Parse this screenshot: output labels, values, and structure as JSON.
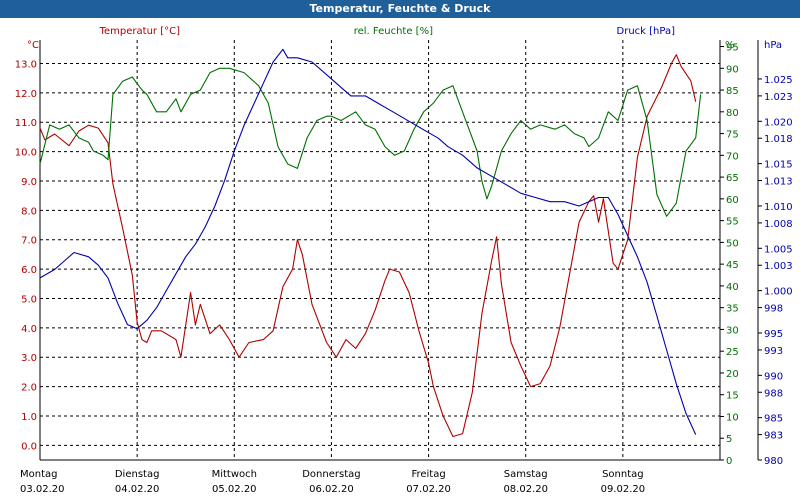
{
  "window": {
    "title": "Temperatur, Feuchte & Druck"
  },
  "chart_data": {
    "type": "line",
    "title": "Temperatur, Feuchte & Druck",
    "colors": {
      "temperature": "#b00000",
      "humidity": "#007000",
      "pressure": "#0000b0",
      "grid": "#000000"
    },
    "grid": true,
    "x_range": [
      0,
      7
    ],
    "x_ticks": [
      {
        "day": "Montag",
        "date": "03.02.20"
      },
      {
        "day": "Dienstag",
        "date": "04.02.20"
      },
      {
        "day": "Mittwoch",
        "date": "05.02.20"
      },
      {
        "day": "Donnerstag",
        "date": "06.02.20"
      },
      {
        "day": "Freitag",
        "date": "07.02.20"
      },
      {
        "day": "Samstag",
        "date": "08.02.20"
      },
      {
        "day": "Sonntag",
        "date": "09.02.20"
      }
    ],
    "axes": {
      "temperature": {
        "unit": "°C",
        "ylim": [
          -0.5,
          13.8
        ],
        "ticks": [
          "0.0",
          "1.0",
          "2.0",
          "3.0",
          "4.0",
          "5.0",
          "6.0",
          "7.0",
          "8.0",
          "9.0",
          "10.0",
          "11.0",
          "12.0",
          "13.0"
        ]
      },
      "humidity": {
        "unit": "%",
        "ylim": [
          0,
          96.5
        ],
        "ticks": [
          "0",
          "5",
          "10",
          "15",
          "20",
          "25",
          "30",
          "35",
          "40",
          "45",
          "50",
          "55",
          "60",
          "65",
          "70",
          "75",
          "80",
          "85",
          "90",
          "95"
        ]
      },
      "pressure": {
        "unit": "hPa",
        "ylim": [
          980,
          1029.6
        ],
        "ticks": [
          "980",
          "983",
          "985",
          "988",
          "990",
          "993",
          "995",
          "998",
          "1.000",
          "1.003",
          "1.005",
          "1.008",
          "1.010",
          "1.013",
          "1.015",
          "1.018",
          "1.020",
          "1.023",
          "1.025"
        ]
      }
    },
    "series": [
      {
        "name": "Temperatur [°C]",
        "axis": "temperature",
        "points": [
          [
            0,
            10.8
          ],
          [
            0.05,
            10.4
          ],
          [
            0.15,
            10.6
          ],
          [
            0.3,
            10.2
          ],
          [
            0.4,
            10.7
          ],
          [
            0.5,
            10.9
          ],
          [
            0.6,
            10.8
          ],
          [
            0.7,
            10.3
          ],
          [
            0.75,
            8.9
          ],
          [
            0.85,
            7.4
          ],
          [
            0.95,
            5.8
          ],
          [
            1.0,
            4.2
          ],
          [
            1.05,
            3.6
          ],
          [
            1.1,
            3.5
          ],
          [
            1.15,
            3.9
          ],
          [
            1.25,
            3.9
          ],
          [
            1.4,
            3.6
          ],
          [
            1.45,
            3.0
          ],
          [
            1.55,
            5.2
          ],
          [
            1.6,
            4.1
          ],
          [
            1.65,
            4.8
          ],
          [
            1.75,
            3.8
          ],
          [
            1.85,
            4.1
          ],
          [
            1.95,
            3.6
          ],
          [
            2.05,
            3.0
          ],
          [
            2.15,
            3.5
          ],
          [
            2.3,
            3.6
          ],
          [
            2.4,
            3.9
          ],
          [
            2.5,
            5.4
          ],
          [
            2.6,
            6.0
          ],
          [
            2.65,
            7.0
          ],
          [
            2.7,
            6.5
          ],
          [
            2.8,
            4.8
          ],
          [
            2.95,
            3.5
          ],
          [
            3.05,
            3.0
          ],
          [
            3.15,
            3.6
          ],
          [
            3.25,
            3.3
          ],
          [
            3.35,
            3.8
          ],
          [
            3.45,
            4.6
          ],
          [
            3.55,
            5.6
          ],
          [
            3.6,
            6.0
          ],
          [
            3.7,
            5.9
          ],
          [
            3.8,
            5.2
          ],
          [
            3.9,
            3.9
          ],
          [
            4.0,
            2.8
          ],
          [
            4.05,
            2.0
          ],
          [
            4.15,
            1.0
          ],
          [
            4.25,
            0.3
          ],
          [
            4.35,
            0.4
          ],
          [
            4.45,
            1.8
          ],
          [
            4.55,
            4.5
          ],
          [
            4.65,
            6.3
          ],
          [
            4.7,
            7.1
          ],
          [
            4.75,
            5.5
          ],
          [
            4.85,
            3.5
          ],
          [
            4.95,
            2.7
          ],
          [
            5.05,
            2.0
          ],
          [
            5.15,
            2.1
          ],
          [
            5.25,
            2.7
          ],
          [
            5.35,
            4.0
          ],
          [
            5.45,
            5.8
          ],
          [
            5.55,
            7.6
          ],
          [
            5.65,
            8.3
          ],
          [
            5.7,
            8.5
          ],
          [
            5.75,
            7.6
          ],
          [
            5.8,
            8.4
          ],
          [
            5.9,
            6.2
          ],
          [
            5.95,
            6.0
          ],
          [
            6.05,
            7.0
          ],
          [
            6.15,
            9.8
          ],
          [
            6.25,
            11.2
          ],
          [
            6.4,
            12.2
          ],
          [
            6.5,
            13.0
          ],
          [
            6.55,
            13.3
          ],
          [
            6.6,
            12.9
          ],
          [
            6.7,
            12.4
          ],
          [
            6.75,
            11.7
          ]
        ]
      },
      {
        "name": "rel. Feuchte [%]",
        "axis": "humidity",
        "points": [
          [
            0,
            68
          ],
          [
            0.1,
            77
          ],
          [
            0.2,
            76
          ],
          [
            0.3,
            77
          ],
          [
            0.4,
            74
          ],
          [
            0.5,
            73
          ],
          [
            0.55,
            71
          ],
          [
            0.65,
            70
          ],
          [
            0.7,
            69
          ],
          [
            0.75,
            84
          ],
          [
            0.85,
            87
          ],
          [
            0.95,
            88
          ],
          [
            1.05,
            85
          ],
          [
            1.1,
            84
          ],
          [
            1.2,
            80
          ],
          [
            1.3,
            80
          ],
          [
            1.4,
            83
          ],
          [
            1.45,
            80
          ],
          [
            1.55,
            84
          ],
          [
            1.65,
            85
          ],
          [
            1.75,
            89
          ],
          [
            1.85,
            90
          ],
          [
            1.95,
            90
          ],
          [
            2.1,
            89
          ],
          [
            2.25,
            86
          ],
          [
            2.3,
            84
          ],
          [
            2.35,
            82
          ],
          [
            2.45,
            72
          ],
          [
            2.55,
            68
          ],
          [
            2.65,
            67
          ],
          [
            2.75,
            74
          ],
          [
            2.85,
            78
          ],
          [
            2.95,
            79
          ],
          [
            3.0,
            79
          ],
          [
            3.1,
            78
          ],
          [
            3.25,
            80
          ],
          [
            3.35,
            77
          ],
          [
            3.45,
            76
          ],
          [
            3.55,
            72
          ],
          [
            3.65,
            70
          ],
          [
            3.75,
            71
          ],
          [
            3.85,
            76
          ],
          [
            3.95,
            80
          ],
          [
            4.05,
            82
          ],
          [
            4.15,
            85
          ],
          [
            4.25,
            86
          ],
          [
            4.3,
            83
          ],
          [
            4.4,
            77
          ],
          [
            4.5,
            71
          ],
          [
            4.55,
            64
          ],
          [
            4.6,
            60
          ],
          [
            4.65,
            63
          ],
          [
            4.75,
            71
          ],
          [
            4.85,
            75
          ],
          [
            4.95,
            78
          ],
          [
            5.05,
            76
          ],
          [
            5.15,
            77
          ],
          [
            5.3,
            76
          ],
          [
            5.4,
            77
          ],
          [
            5.5,
            75
          ],
          [
            5.6,
            74
          ],
          [
            5.65,
            72
          ],
          [
            5.75,
            74
          ],
          [
            5.85,
            80
          ],
          [
            5.95,
            78
          ],
          [
            6.05,
            85
          ],
          [
            6.15,
            86
          ],
          [
            6.25,
            78
          ],
          [
            6.35,
            61
          ],
          [
            6.45,
            56
          ],
          [
            6.55,
            59
          ],
          [
            6.65,
            71
          ],
          [
            6.75,
            74
          ],
          [
            6.8,
            84
          ]
        ]
      },
      {
        "name": "Druck [hPa]",
        "axis": "pressure",
        "points": [
          [
            0,
            1001.5
          ],
          [
            0.15,
            1002.5
          ],
          [
            0.25,
            1003.5
          ],
          [
            0.35,
            1004.5
          ],
          [
            0.5,
            1004.0
          ],
          [
            0.6,
            1003.0
          ],
          [
            0.7,
            1001.5
          ],
          [
            0.8,
            998.5
          ],
          [
            0.9,
            996.0
          ],
          [
            1.0,
            995.5
          ],
          [
            1.1,
            996.5
          ],
          [
            1.2,
            998.0
          ],
          [
            1.3,
            1000.0
          ],
          [
            1.4,
            1002.0
          ],
          [
            1.5,
            1004.0
          ],
          [
            1.6,
            1005.5
          ],
          [
            1.7,
            1007.5
          ],
          [
            1.8,
            1010.0
          ],
          [
            1.9,
            1013.0
          ],
          [
            2.0,
            1016.5
          ],
          [
            2.1,
            1019.5
          ],
          [
            2.2,
            1022.0
          ],
          [
            2.3,
            1024.5
          ],
          [
            2.4,
            1027.0
          ],
          [
            2.5,
            1028.5
          ],
          [
            2.55,
            1027.5
          ],
          [
            2.65,
            1027.5
          ],
          [
            2.8,
            1027.0
          ],
          [
            2.95,
            1025.5
          ],
          [
            3.1,
            1024.0
          ],
          [
            3.2,
            1023.0
          ],
          [
            3.35,
            1023.0
          ],
          [
            3.5,
            1022.0
          ],
          [
            3.65,
            1021.0
          ],
          [
            3.8,
            1020.0
          ],
          [
            3.95,
            1019.0
          ],
          [
            4.1,
            1018.0
          ],
          [
            4.2,
            1017.0
          ],
          [
            4.35,
            1016.0
          ],
          [
            4.5,
            1014.5
          ],
          [
            4.65,
            1013.5
          ],
          [
            4.8,
            1012.5
          ],
          [
            4.95,
            1011.5
          ],
          [
            5.1,
            1011.0
          ],
          [
            5.25,
            1010.5
          ],
          [
            5.4,
            1010.5
          ],
          [
            5.55,
            1010.0
          ],
          [
            5.65,
            1010.5
          ],
          [
            5.75,
            1011.0
          ],
          [
            5.85,
            1011.0
          ],
          [
            5.95,
            1009.0
          ],
          [
            6.05,
            1006.5
          ],
          [
            6.15,
            1004.0
          ],
          [
            6.25,
            1001.0
          ],
          [
            6.35,
            997.0
          ],
          [
            6.45,
            993.0
          ],
          [
            6.55,
            989.0
          ],
          [
            6.65,
            985.5
          ],
          [
            6.75,
            983.0
          ]
        ]
      }
    ]
  }
}
